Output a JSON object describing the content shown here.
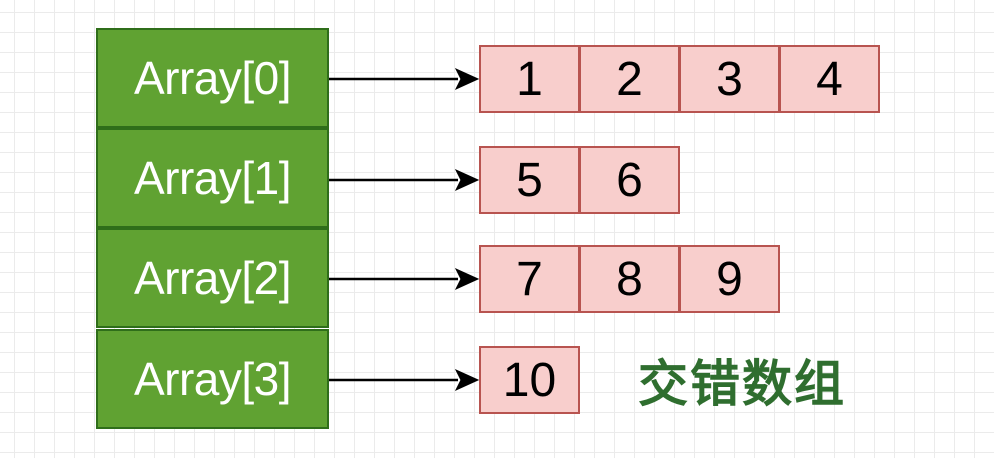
{
  "diagram": {
    "caption": "交错数组",
    "rows": [
      {
        "label": "Array[0]",
        "values": [
          "1",
          "2",
          "3",
          "4"
        ]
      },
      {
        "label": "Array[1]",
        "values": [
          "5",
          "6"
        ]
      },
      {
        "label": "Array[2]",
        "values": [
          "7",
          "8",
          "9"
        ]
      },
      {
        "label": "Array[3]",
        "values": [
          "10"
        ]
      }
    ],
    "colors": {
      "index_fill": "#60a232",
      "index_border": "#2f6e1a",
      "value_fill": "#f8cecc",
      "value_border": "#b85450",
      "caption": "#2f6e2f"
    }
  }
}
